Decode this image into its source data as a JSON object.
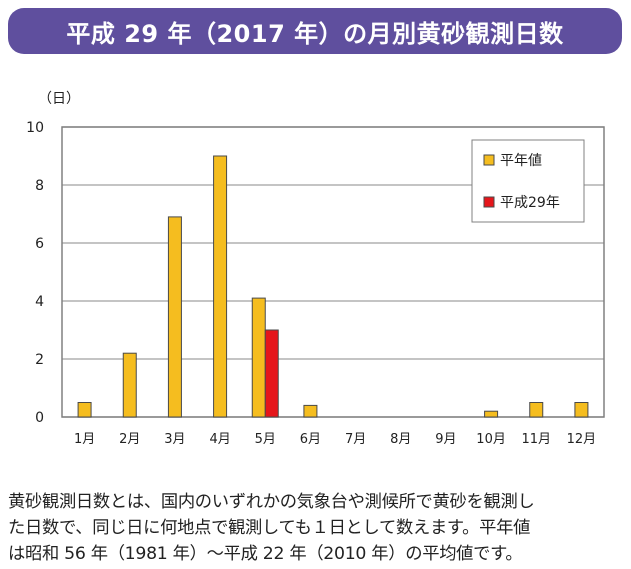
{
  "title": "平成 29 年（2017 年）の月別黄砂観測日数",
  "chart_data": {
    "type": "bar",
    "title": "平成 29 年（2017 年）の月別黄砂観測日数",
    "ylabel": "（日）",
    "xlabel": "",
    "ylim": [
      0,
      10
    ],
    "yticks": [
      "0",
      "2",
      "4",
      "6",
      "8",
      "10"
    ],
    "grid": true,
    "legend_position": "top-right",
    "categories": [
      "1月",
      "2月",
      "3月",
      "4月",
      "5月",
      "6月",
      "7月",
      "8月",
      "9月",
      "10月",
      "11月",
      "12月"
    ],
    "series": [
      {
        "name": "平年値",
        "color": "#f5bd1f",
        "values": [
          0.5,
          2.2,
          6.9,
          9.0,
          4.1,
          0.4,
          0,
          0,
          0,
          0.2,
          0.5,
          0.5
        ]
      },
      {
        "name": "平成29年",
        "color": "#e5161b",
        "values": [
          0,
          0,
          0,
          0,
          3,
          0,
          0,
          0,
          0,
          0,
          0,
          0
        ]
      }
    ]
  },
  "notes": [
    "黄砂観測日数とは、国内のいずれかの気象台や測候所で黄砂を観測し",
    "た日数で、同じ日に何地点で観測しても１日として数えます。平年値",
    "は昭和 56 年（1981 年）～平成 22 年（2010 年）の平均値です。"
  ]
}
